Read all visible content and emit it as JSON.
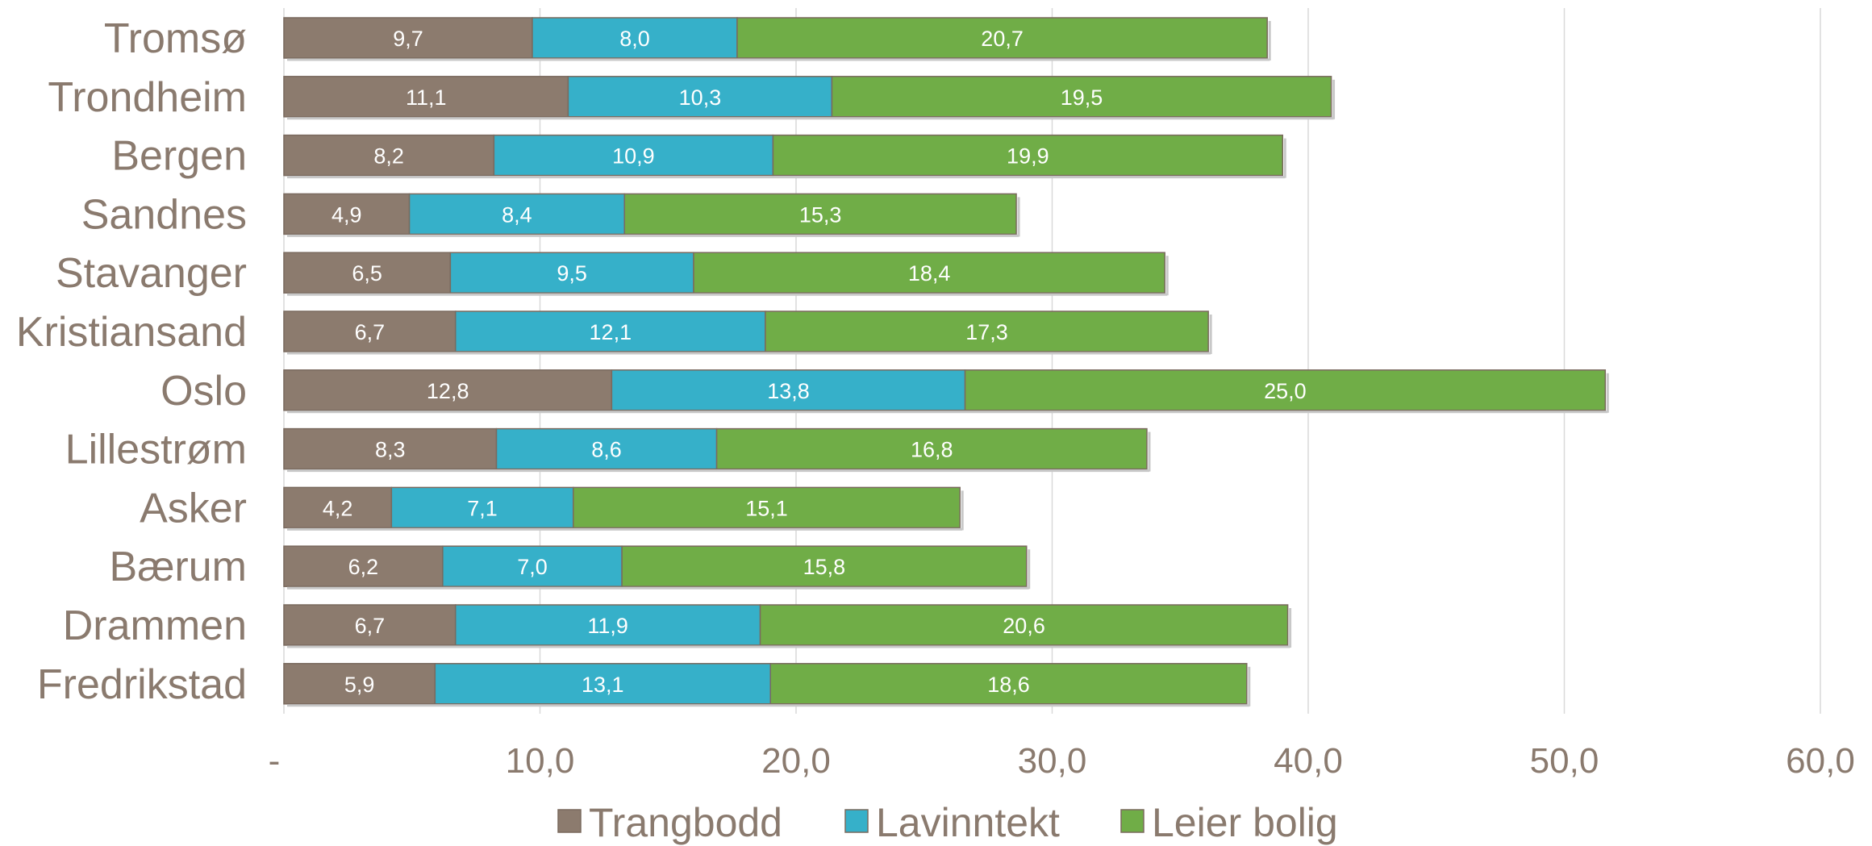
{
  "chart_data": {
    "type": "bar",
    "orientation": "horizontal",
    "stacked": true,
    "categories": [
      "Tromsø",
      "Trondheim",
      "Bergen",
      "Sandnes",
      "Stavanger",
      "Kristiansand",
      "Oslo",
      "Lillestrøm",
      "Asker",
      "Bærum",
      "Drammen",
      "Fredrikstad"
    ],
    "series": [
      {
        "name": "Trangbodd",
        "color": "#8c7b6e",
        "values": [
          9.7,
          11.1,
          8.2,
          4.9,
          6.5,
          6.7,
          12.8,
          8.3,
          4.2,
          6.2,
          6.7,
          5.9
        ],
        "labels": [
          "9,7",
          "11,1",
          "8,2",
          "4,9",
          "6,5",
          "6,7",
          "12,8",
          "8,3",
          "4,2",
          "6,2",
          "6,7",
          "5,9"
        ]
      },
      {
        "name": "Lavinntekt",
        "color": "#36b0c9",
        "values": [
          8.0,
          10.3,
          10.9,
          8.4,
          9.5,
          12.1,
          13.8,
          8.6,
          7.1,
          7.0,
          11.9,
          13.1
        ],
        "labels": [
          "8,0",
          "10,3",
          "10,9",
          "8,4",
          "9,5",
          "12,1",
          "13,8",
          "8,6",
          "7,1",
          "7,0",
          "11,9",
          "13,1"
        ]
      },
      {
        "name": "Leier bolig",
        "color": "#70ad47",
        "values": [
          20.7,
          19.5,
          19.9,
          15.3,
          18.4,
          17.3,
          25.0,
          16.8,
          15.1,
          15.8,
          20.6,
          18.6
        ],
        "labels": [
          "20,7",
          "19,5",
          "19,9",
          "15,3",
          "18,4",
          "17,3",
          "25,0",
          "16,8",
          "15,1",
          "15,8",
          "20,6",
          "18,6"
        ]
      }
    ],
    "xlim": [
      0,
      60
    ],
    "ticks": [
      0,
      10,
      20,
      30,
      40,
      50,
      60
    ],
    "tick_labels": [
      "-",
      "10,0",
      "20,0",
      "30,0",
      "40,0",
      "50,0",
      "60,0"
    ],
    "grid": true,
    "legend_position": "bottom",
    "title": "",
    "xlabel": "",
    "ylabel": ""
  }
}
